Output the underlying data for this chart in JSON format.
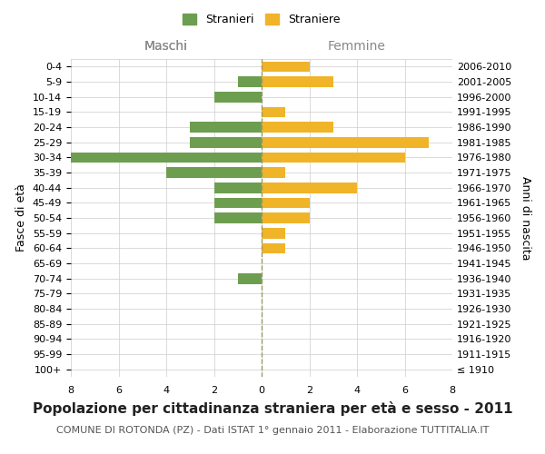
{
  "age_groups": [
    "100+",
    "95-99",
    "90-94",
    "85-89",
    "80-84",
    "75-79",
    "70-74",
    "65-69",
    "60-64",
    "55-59",
    "50-54",
    "45-49",
    "40-44",
    "35-39",
    "30-34",
    "25-29",
    "20-24",
    "15-19",
    "10-14",
    "5-9",
    "0-4"
  ],
  "birth_years": [
    "≤ 1910",
    "1911-1915",
    "1916-1920",
    "1921-1925",
    "1926-1930",
    "1931-1935",
    "1936-1940",
    "1941-1945",
    "1946-1950",
    "1951-1955",
    "1956-1960",
    "1961-1965",
    "1966-1970",
    "1971-1975",
    "1976-1980",
    "1981-1985",
    "1986-1990",
    "1991-1995",
    "1996-2000",
    "2001-2005",
    "2006-2010"
  ],
  "males": [
    0,
    0,
    0,
    0,
    0,
    0,
    1,
    0,
    0,
    0,
    2,
    2,
    2,
    4,
    8,
    3,
    3,
    0,
    2,
    1,
    0
  ],
  "females": [
    0,
    0,
    0,
    0,
    0,
    0,
    0,
    0,
    1,
    1,
    2,
    2,
    4,
    1,
    6,
    7,
    3,
    1,
    0,
    3,
    2
  ],
  "male_color": "#6d9e4f",
  "female_color": "#f0b429",
  "grid_color": "#cccccc",
  "center_line_color": "#999966",
  "background_color": "#ffffff",
  "title": "Popolazione per cittadinanza straniera per età e sesso - 2011",
  "subtitle": "COMUNE DI ROTONDA (PZ) - Dati ISTAT 1° gennaio 2011 - Elaborazione TUTTITALIA.IT",
  "ylabel_left": "Fasce di età",
  "ylabel_right": "Anni di nascita",
  "xlabel_left": "Maschi",
  "xlabel_right": "Femmine",
  "legend_male": "Stranieri",
  "legend_female": "Straniere",
  "xlim": 8,
  "title_fontsize": 11,
  "subtitle_fontsize": 8,
  "tick_fontsize": 8,
  "label_fontsize": 9
}
